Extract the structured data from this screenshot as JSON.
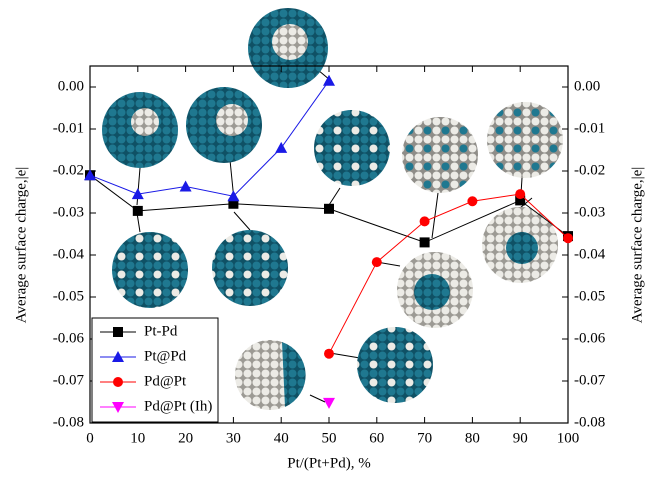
{
  "chart_data": {
    "type": "line",
    "xlabel": "Pt/(Pt+Pd), %",
    "ylabel": "Average surface charge,|e|",
    "y2label": "Average surface charge,|e|",
    "xlim": [
      0,
      100
    ],
    "xticks": [
      0,
      10,
      20,
      30,
      40,
      50,
      60,
      70,
      80,
      90,
      100
    ],
    "ylim": [
      -0.08,
      0.005
    ],
    "yticks": [
      {
        "value": 0,
        "label": "0.00"
      },
      {
        "value": -0.01,
        "label": "-0.01"
      },
      {
        "value": -0.02,
        "label": "-0.02"
      },
      {
        "value": -0.03,
        "label": "-0.03"
      },
      {
        "value": -0.04,
        "label": "-0.04"
      },
      {
        "value": -0.05,
        "label": "-0.05"
      },
      {
        "value": -0.06,
        "label": "-0.06"
      },
      {
        "value": -0.07,
        "label": "-0.07"
      },
      {
        "value": -0.08,
        "label": "-0.08"
      }
    ],
    "legend": "lower left",
    "series": [
      {
        "name": "Pt-Pd",
        "color": "#000000",
        "marker": "square",
        "x": [
          0,
          10,
          30,
          50,
          70,
          90,
          100
        ],
        "values": [
          -0.021,
          -0.0295,
          -0.0278,
          -0.029,
          -0.037,
          -0.027,
          -0.0355
        ]
      },
      {
        "name": "Pt@Pd",
        "color": "#1a1ae6",
        "marker": "triangle-up",
        "x": [
          0,
          10,
          20,
          30,
          40,
          50
        ],
        "values": [
          -0.021,
          -0.0255,
          -0.0237,
          -0.026,
          -0.0145,
          0.0015
        ]
      },
      {
        "name": "Pd@Pt",
        "color": "#ff0000",
        "marker": "circle",
        "x": [
          50,
          60,
          70,
          80,
          90,
          100
        ],
        "values": [
          -0.0635,
          -0.0417,
          -0.032,
          -0.0272,
          -0.0255,
          -0.036
        ]
      },
      {
        "name": "Pd@Pt (Ih)",
        "color": "#ff00ff",
        "marker": "triangle-down",
        "x": [
          50
        ],
        "values": [
          -0.0752
        ]
      }
    ]
  }
}
